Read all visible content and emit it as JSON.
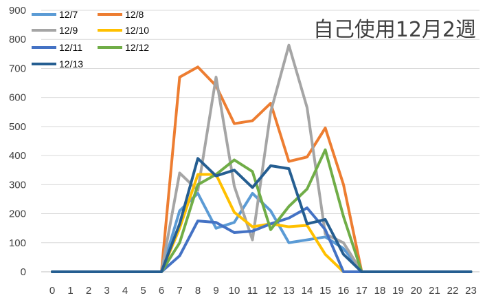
{
  "chart_data": {
    "type": "line",
    "title": "自己使用12月2週",
    "xlabel": "",
    "ylabel": "",
    "ylim": [
      0,
      900
    ],
    "yticks": [
      0,
      100,
      200,
      300,
      400,
      500,
      600,
      700,
      800,
      900
    ],
    "categories": [
      "0",
      "1",
      "2",
      "3",
      "4",
      "5",
      "6",
      "7",
      "8",
      "9",
      "10",
      "11",
      "12",
      "13",
      "14",
      "15",
      "16",
      "17",
      "18",
      "19",
      "20",
      "21",
      "22",
      "23"
    ],
    "grid": "horizontal",
    "legend": "top-left",
    "series": [
      {
        "name": "12/7",
        "color": "#5B9BD5",
        "values": [
          0,
          0,
          0,
          0,
          0,
          0,
          0,
          210,
          270,
          150,
          170,
          270,
          210,
          100,
          110,
          120,
          80,
          0,
          0,
          0,
          0,
          0,
          0,
          0
        ]
      },
      {
        "name": "12/8",
        "color": "#ED7D31",
        "values": [
          0,
          0,
          0,
          0,
          0,
          0,
          0,
          670,
          705,
          640,
          510,
          520,
          580,
          380,
          395,
          495,
          300,
          0,
          0,
          0,
          0,
          0,
          0,
          0
        ]
      },
      {
        "name": "12/9",
        "color": "#A5A5A5",
        "values": [
          0,
          0,
          0,
          0,
          0,
          0,
          0,
          340,
          280,
          670,
          295,
          110,
          550,
          780,
          565,
          130,
          100,
          0,
          0,
          0,
          0,
          0,
          0,
          0
        ]
      },
      {
        "name": "12/10",
        "color": "#FFC000",
        "values": [
          0,
          0,
          0,
          0,
          0,
          0,
          0,
          150,
          335,
          335,
          205,
          155,
          165,
          155,
          160,
          60,
          0,
          0,
          0,
          0,
          0,
          0,
          0,
          0
        ]
      },
      {
        "name": "12/11",
        "color": "#4472C4",
        "values": [
          0,
          0,
          0,
          0,
          0,
          0,
          0,
          55,
          175,
          170,
          135,
          140,
          165,
          185,
          220,
          145,
          0,
          0,
          0,
          0,
          0,
          0,
          0,
          0
        ]
      },
      {
        "name": "12/12",
        "color": "#70AD47",
        "values": [
          0,
          0,
          0,
          0,
          0,
          0,
          0,
          100,
          300,
          335,
          385,
          345,
          145,
          225,
          285,
          420,
          190,
          0,
          0,
          0,
          0,
          0,
          0,
          0
        ]
      },
      {
        "name": "12/13",
        "color": "#255E91",
        "values": [
          0,
          0,
          0,
          0,
          0,
          0,
          0,
          165,
          390,
          330,
          350,
          290,
          365,
          355,
          165,
          180,
          60,
          0,
          0,
          0,
          0,
          0,
          0,
          0
        ]
      }
    ]
  }
}
